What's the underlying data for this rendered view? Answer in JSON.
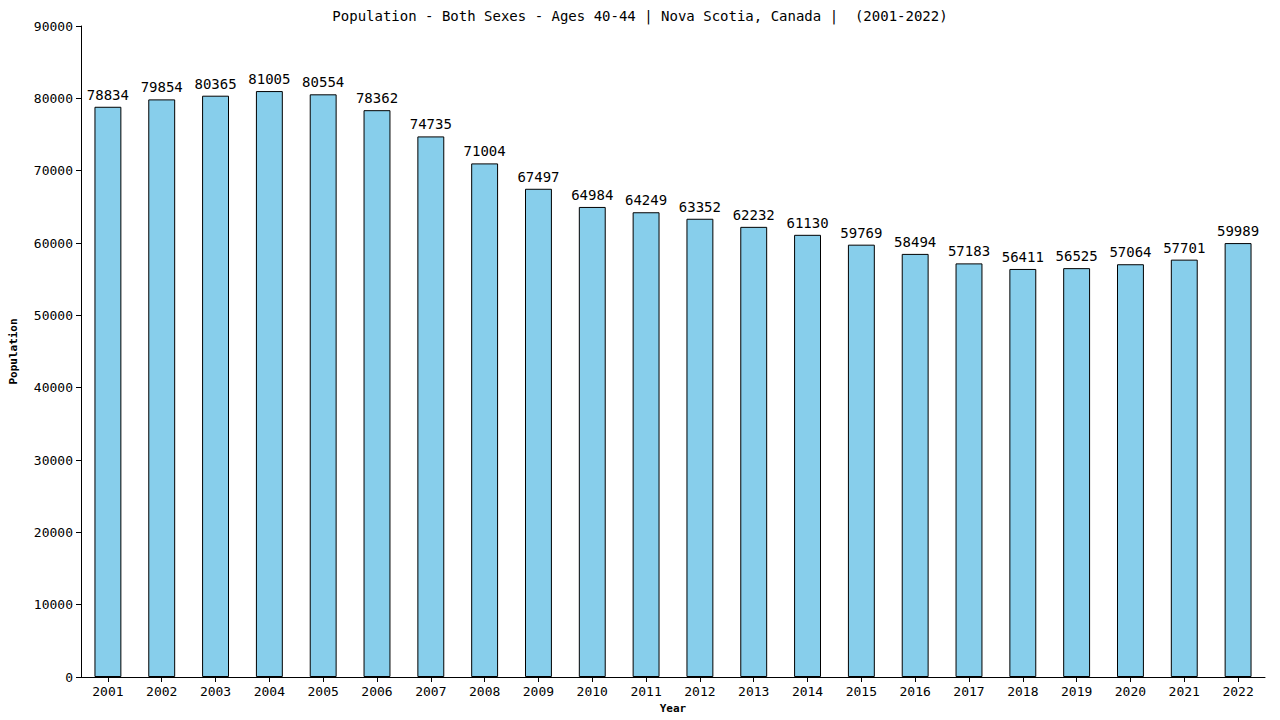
{
  "chart_data": {
    "type": "bar",
    "title": "Population - Both Sexes - Ages 40-44 | Nova Scotia, Canada |  (2001-2022)",
    "x_label": "Year",
    "y_label": "Population",
    "categories": [
      "2001",
      "2002",
      "2003",
      "2004",
      "2005",
      "2006",
      "2007",
      "2008",
      "2009",
      "2010",
      "2011",
      "2012",
      "2013",
      "2014",
      "2015",
      "2016",
      "2017",
      "2018",
      "2019",
      "2020",
      "2021",
      "2022"
    ],
    "values": [
      78834,
      79854,
      80365,
      81005,
      80554,
      78362,
      74735,
      71004,
      67497,
      64984,
      64249,
      63352,
      62232,
      61130,
      59769,
      58494,
      57183,
      56411,
      56525,
      57064,
      57701,
      59989
    ],
    "color": "#87ceeb",
    "ylim": [
      0,
      90000
    ],
    "yticks": [
      0,
      10000,
      20000,
      30000,
      40000,
      50000,
      60000,
      70000,
      80000,
      90000
    ],
    "grid": false,
    "data_labels": true
  }
}
